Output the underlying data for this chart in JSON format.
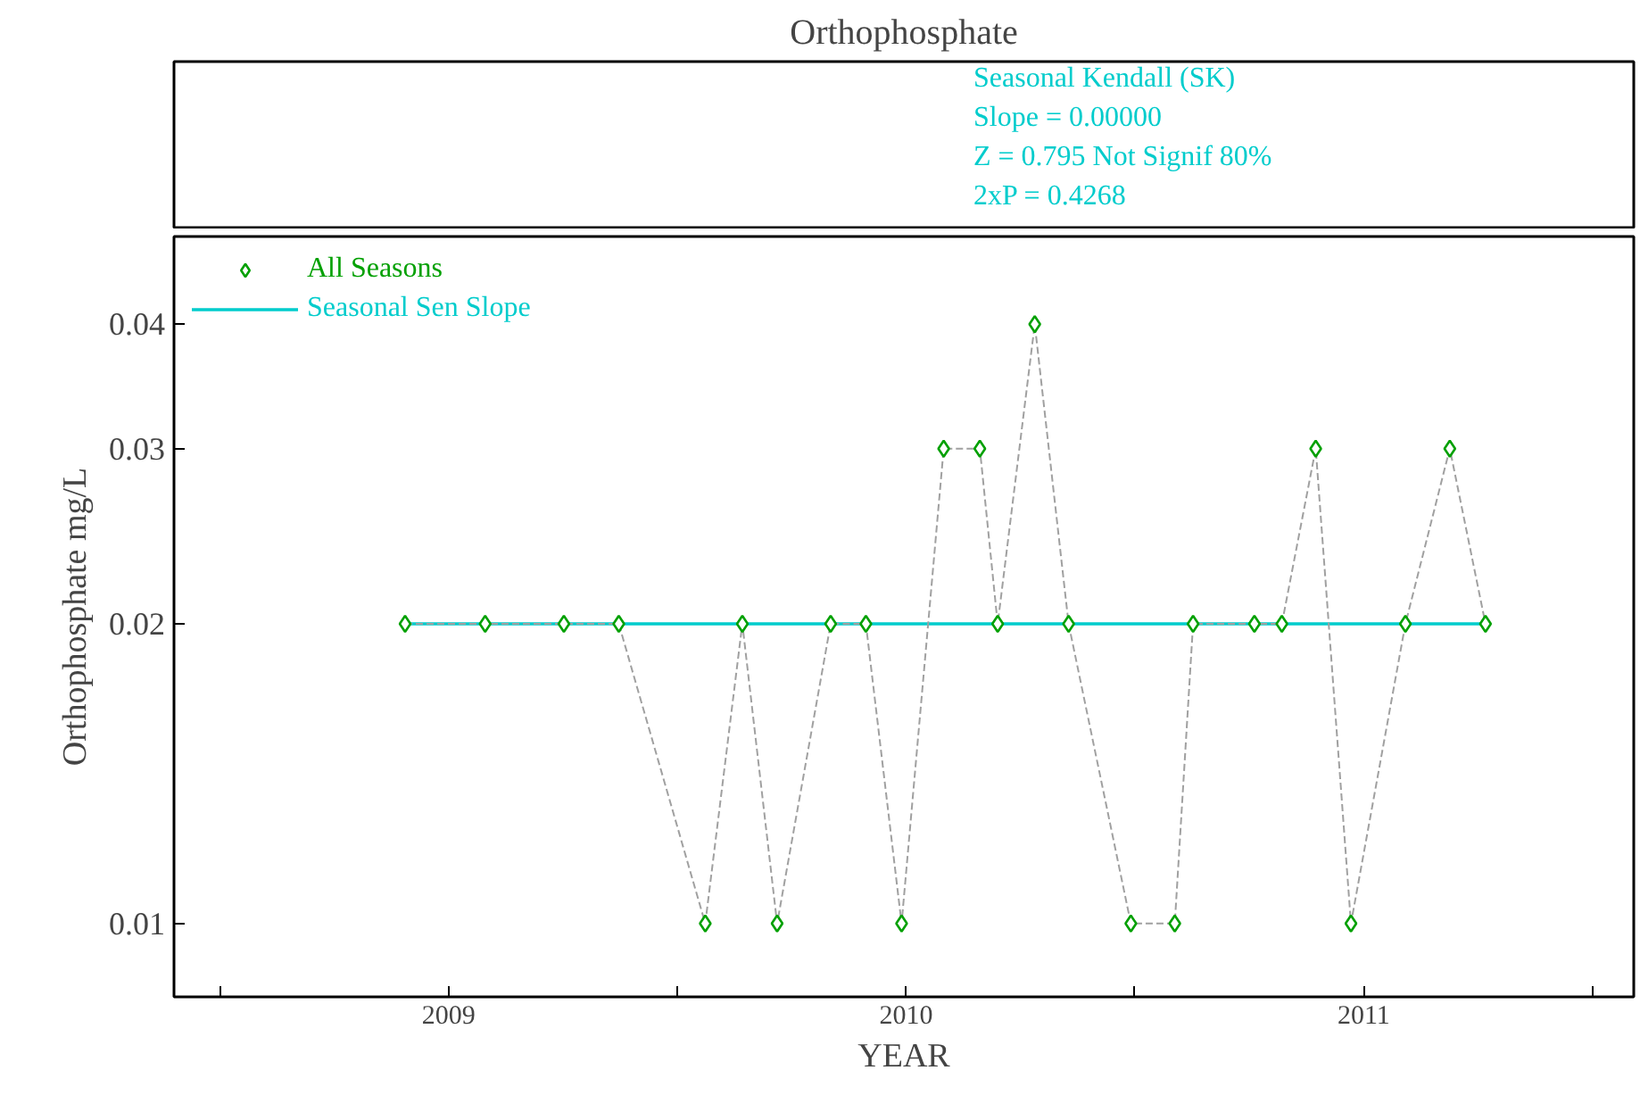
{
  "chart_data": {
    "type": "scatter",
    "title": "Orthophosphate",
    "xlabel": "YEAR",
    "ylabel": "Orthophosphate mg/L",
    "x": [
      2008.905,
      2009.08,
      2009.252,
      2009.372,
      2009.561,
      2009.642,
      2009.718,
      2009.835,
      2009.912,
      2009.99,
      2010.082,
      2010.161,
      2010.2,
      2010.281,
      2010.355,
      2010.491,
      2010.587,
      2010.627,
      2010.761,
      2010.821,
      2010.895,
      2010.972,
      2011.091,
      2011.188,
      2011.266
    ],
    "series": [
      {
        "type": "line",
        "color": "#a0a0a0",
        "line_style": "dashed",
        "marker": "none",
        "values": [
          0.02,
          0.02,
          0.02,
          0.02,
          0.01,
          0.02,
          0.01,
          0.02,
          0.02,
          0.01,
          0.03,
          0.03,
          0.02,
          0.04,
          0.02,
          0.01,
          0.01,
          0.02,
          0.02,
          0.02,
          0.03,
          0.01,
          0.02,
          0.03,
          0.02
        ]
      },
      {
        "name": "All Seasons",
        "color": "#00a000",
        "marker": "diamond",
        "values": [
          0.02,
          0.02,
          0.02,
          0.02,
          0.01,
          0.02,
          0.01,
          0.02,
          0.02,
          0.01,
          0.03,
          0.03,
          0.02,
          0.04,
          0.02,
          0.01,
          0.01,
          0.02,
          0.02,
          0.02,
          0.03,
          0.01,
          0.02,
          0.03,
          0.02
        ]
      },
      {
        "type": "line",
        "name": "Seasonal Sen Slope",
        "color": "#00cccc",
        "line_style": "solid",
        "marker": "none",
        "x": [
          2008.905,
          2011.266
        ],
        "values": [
          0.02,
          0.02
        ]
      }
    ],
    "annotations": [
      "Seasonal Kendall (SK)",
      "Slope = 0.00000",
      "Z = 0.795  Not Signif 80%",
      "2xP = 0.4268"
    ],
    "log": "y",
    "xlim": [
      2008.4,
      2011.59
    ],
    "ylim": [
      0.00844,
      0.049
    ],
    "xticks": [
      {
        "value": 2008.5,
        "label": null
      },
      2009,
      {
        "value": 2009.5,
        "label": null
      },
      2010,
      {
        "value": 2010.5,
        "label": null
      },
      2011,
      {
        "value": 2011.5,
        "label": null
      }
    ],
    "yticks": [
      0.01,
      0.02,
      0.03,
      0.04
    ],
    "grid": false,
    "legend": "top left"
  }
}
